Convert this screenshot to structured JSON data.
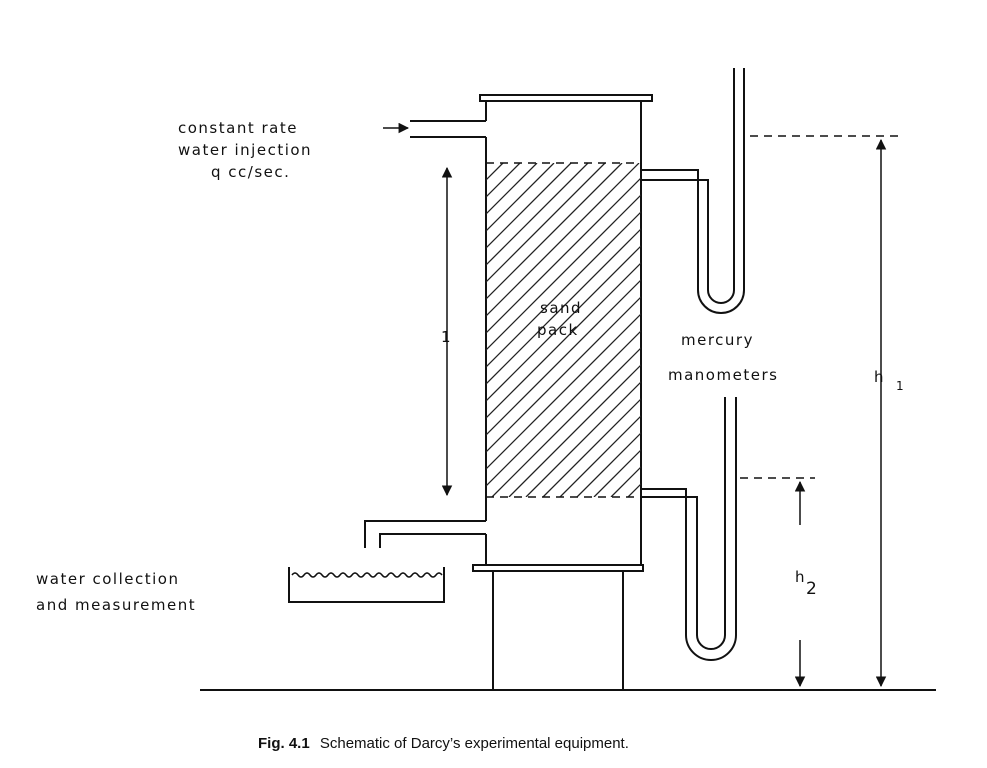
{
  "labels": {
    "injection_line1": "constant rate",
    "injection_line2": "water injection",
    "injection_line3": "q   cc/sec.",
    "length": "1",
    "sand_line1": "sand",
    "sand_line2": "pack",
    "manometer_line1": "mercury",
    "manometer_line2": "manometers",
    "h1_main": "h",
    "h1_sub": "1",
    "h2_main": "h",
    "h2_sub": "2",
    "collection_line1": "water collection",
    "collection_line2": "and measurement"
  },
  "caption": {
    "number": "Fig. 4.1",
    "text": "Schematic of Darcy’s experimental equipment."
  }
}
